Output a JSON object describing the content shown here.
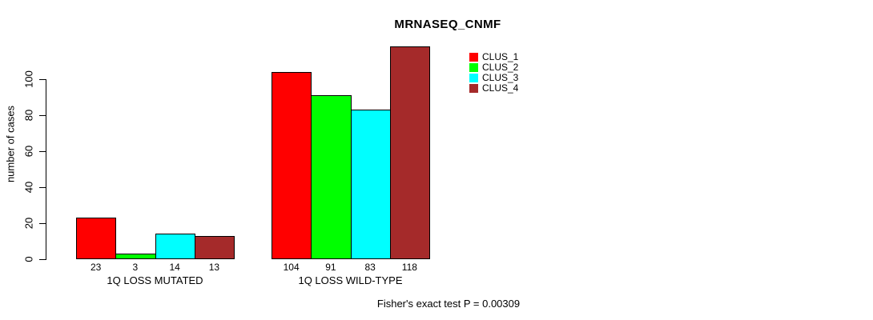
{
  "page": {
    "background_color": "#FFFFFF",
    "text_color": "#000000"
  },
  "chart_data": {
    "type": "bar",
    "title": "MRNASEQ_CNMF",
    "ylabel": "number of cases",
    "xlabel": "",
    "ylim": [
      0,
      118
    ],
    "yticks": [
      0,
      20,
      40,
      60,
      80,
      100
    ],
    "grid": false,
    "categories": [
      "1Q LOSS MUTATED",
      "1Q LOSS WILD-TYPE"
    ],
    "series": [
      {
        "name": "CLUS_1",
        "color": "#FF0000",
        "values": [
          23,
          104
        ]
      },
      {
        "name": "CLUS_2",
        "color": "#00FF00",
        "values": [
          3,
          91
        ]
      },
      {
        "name": "CLUS_3",
        "color": "#00FFFF",
        "values": [
          14,
          83
        ]
      },
      {
        "name": "CLUS_4",
        "color": "#A52A2A",
        "values": [
          13,
          118
        ]
      }
    ],
    "bar_value_labels_shown": true,
    "bar_border_color": "#000000",
    "legend_position": "top-right",
    "annotation": "Fisher's exact test P = 0.00309"
  }
}
